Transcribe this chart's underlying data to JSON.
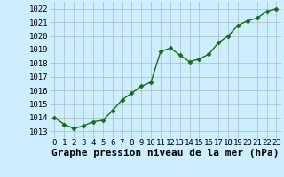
{
  "x": [
    0,
    1,
    2,
    3,
    4,
    5,
    6,
    7,
    8,
    9,
    10,
    11,
    12,
    13,
    14,
    15,
    16,
    17,
    18,
    19,
    20,
    21,
    22,
    23
  ],
  "y": [
    1014.0,
    1013.5,
    1013.2,
    1013.4,
    1013.7,
    1013.8,
    1014.5,
    1015.3,
    1015.8,
    1016.3,
    1016.6,
    1018.85,
    1019.1,
    1018.6,
    1018.1,
    1018.3,
    1018.65,
    1019.5,
    1020.0,
    1020.75,
    1021.1,
    1021.3,
    1021.8,
    1022.0
  ],
  "line_color": "#1a6b1a",
  "marker": "D",
  "marker_size": 2.5,
  "bg_color": "#cceeff",
  "grid_color": "#aabbbb",
  "xlabel": "Graphe pression niveau de la mer (hPa)",
  "xlabel_fontsize": 8,
  "ylim": [
    1012.5,
    1022.5
  ],
  "yticks": [
    1013,
    1014,
    1015,
    1016,
    1017,
    1018,
    1019,
    1020,
    1021,
    1022
  ],
  "xticks": [
    0,
    1,
    2,
    3,
    4,
    5,
    6,
    7,
    8,
    9,
    10,
    11,
    12,
    13,
    14,
    15,
    16,
    17,
    18,
    19,
    20,
    21,
    22,
    23
  ],
  "tick_fontsize": 6.5,
  "line_width": 1.0
}
